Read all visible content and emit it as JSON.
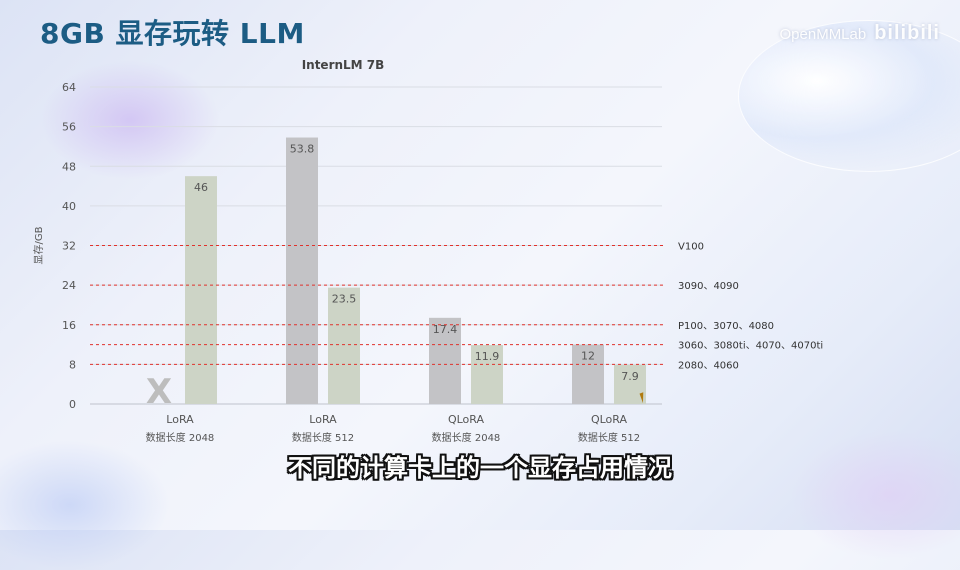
{
  "slide": {
    "title": "8GB 显存玩转 LLM",
    "caption": "不同的计算卡上的一个显存占用情况"
  },
  "watermark": {
    "text": "OpenMMLab",
    "brand": "bilibili"
  },
  "chart_data": {
    "type": "bar",
    "title": "InternLM 7B",
    "ylabel": "显存/GB",
    "ylim": [
      0,
      64
    ],
    "yticks": [
      0,
      8,
      16,
      24,
      32,
      40,
      48,
      56,
      64
    ],
    "grid": true,
    "categories": [
      {
        "name": "LoRA",
        "detail": "数据长度 2048"
      },
      {
        "name": "LoRA",
        "detail": "数据长度 512"
      },
      {
        "name": "QLoRA",
        "detail": "数据长度 2048"
      },
      {
        "name": "QLoRA",
        "detail": "数据长度 512"
      }
    ],
    "series": [
      {
        "values": [
          null,
          53.8,
          17.4,
          12
        ],
        "labels": [
          "",
          "53.8",
          "17.4",
          "12"
        ],
        "color": "#c3c3c6"
      },
      {
        "values": [
          46,
          23.5,
          11.9,
          7.9
        ],
        "labels": [
          "46",
          "23.5",
          "11.9",
          "7.9"
        ],
        "color": "#cdd4c6"
      }
    ],
    "missing_marker": {
      "category_index": 0,
      "symbol": "X",
      "color": "#bdbdbd"
    },
    "reference_lines": [
      {
        "value": 32,
        "label": "V100"
      },
      {
        "value": 24,
        "label": "3090、4090"
      },
      {
        "value": 16,
        "label": "P100、3070、4080"
      },
      {
        "value": 12,
        "label": "3060、3080ti、4070、4070ti"
      },
      {
        "value": 8,
        "label": "2080、4060"
      }
    ],
    "reference_color": "#e0322c"
  }
}
